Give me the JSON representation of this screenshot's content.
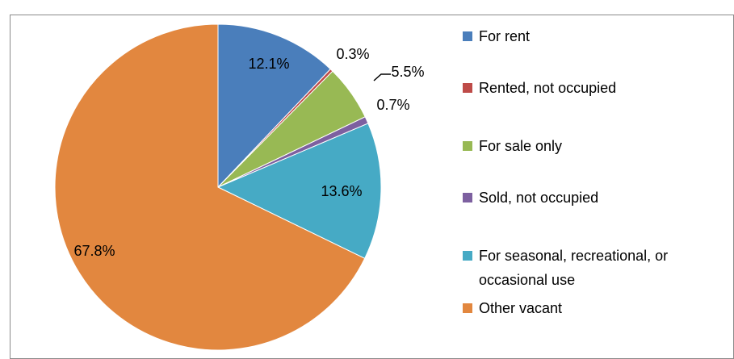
{
  "chart_data": {
    "type": "pie",
    "categories": [
      "For rent",
      "Rented, not occupied",
      "For sale only",
      "Sold, not occupied",
      "For seasonal, recreational, or occasional use",
      "Other vacant"
    ],
    "values": [
      12.1,
      0.3,
      5.5,
      0.7,
      13.6,
      67.8
    ],
    "value_labels": [
      "12.1%",
      "0.3%",
      "5.5%",
      "0.7%",
      "13.6%",
      "67.8%"
    ],
    "colors": [
      "#4a7ebb",
      "#be4b48",
      "#98b954",
      "#7d60a0",
      "#46aac5",
      "#e2873f"
    ],
    "legend": "right"
  }
}
